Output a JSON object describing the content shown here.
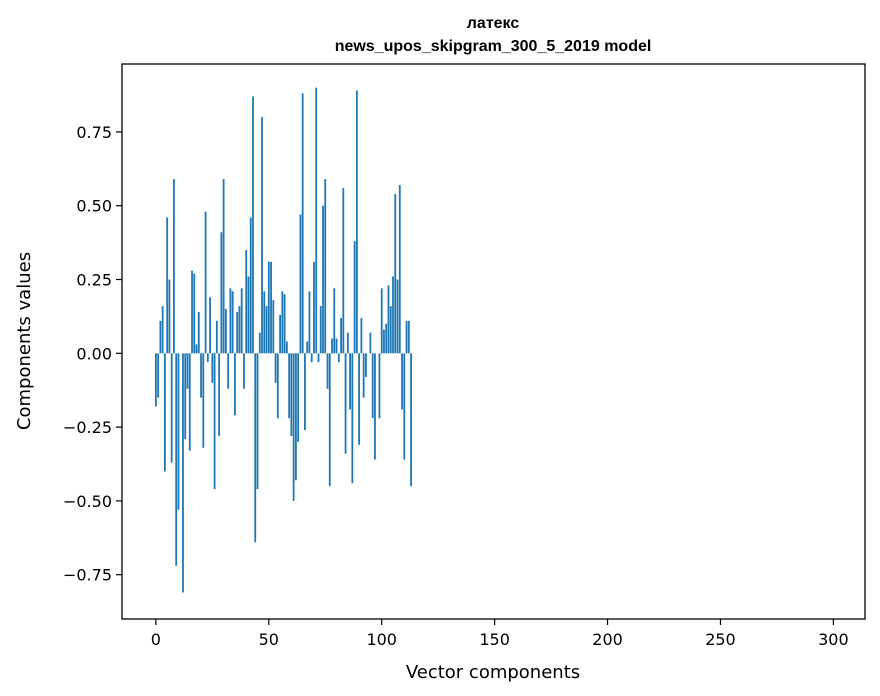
{
  "chart_data": {
    "type": "bar",
    "title": "латекс",
    "subtitle": "news_upos_skipgram_300_5_2019 model",
    "xlabel": "Vector components",
    "ylabel": "Components values",
    "xlim": [
      -15,
      314
    ],
    "ylim": [
      -0.9,
      0.98
    ],
    "xticks": [
      0,
      50,
      100,
      150,
      200,
      250,
      300
    ],
    "xtick_labels": [
      "0",
      "50",
      "100",
      "150",
      "200",
      "250",
      "300"
    ],
    "yticks": [
      -0.75,
      -0.5,
      -0.25,
      0.0,
      0.25,
      0.5,
      0.75
    ],
    "ytick_labels": [
      "−0.75",
      "−0.50",
      "−0.25",
      "0.00",
      "0.25",
      "0.50",
      "0.75"
    ],
    "bar_color": "#1f77b4",
    "grid": false,
    "values": [
      -0.18,
      -0.15,
      0.11,
      0.16,
      -0.4,
      0.46,
      0.25,
      -0.37,
      0.59,
      -0.72,
      -0.53,
      0.0,
      -0.81,
      -0.29,
      -0.12,
      -0.33,
      0.28,
      0.27,
      0.03,
      0.14,
      -0.15,
      -0.32,
      0.48,
      -0.03,
      0.19,
      -0.1,
      -0.46,
      0.11,
      -0.28,
      0.41,
      0.59,
      0.15,
      -0.12,
      0.22,
      0.21,
      -0.21,
      0.14,
      0.16,
      0.22,
      -0.12,
      0.35,
      0.26,
      0.46,
      0.87,
      -0.64,
      -0.46,
      0.07,
      0.8,
      0.21,
      0.16,
      0.31,
      0.31,
      0.18,
      -0.1,
      -0.22,
      0.13,
      0.21,
      0.2,
      0.04,
      -0.22,
      -0.28,
      -0.5,
      -0.43,
      -0.3,
      0.47,
      0.88,
      -0.26,
      0.04,
      0.21,
      -0.03,
      0.31,
      0.9,
      -0.03,
      0.16,
      0.5,
      0.59,
      -0.12,
      -0.45,
      0.05,
      0.22,
      0.05,
      -0.03,
      0.12,
      0.56,
      -0.34,
      0.07,
      -0.19,
      -0.44,
      0.38,
      0.89,
      -0.31,
      0.12,
      -0.15,
      -0.08,
      0.0,
      0.07,
      -0.22,
      -0.36,
      0.0,
      -0.22,
      0.22,
      0.08,
      0.1,
      0.23,
      0.16,
      0.26,
      0.54,
      0.25,
      0.57,
      -0.19,
      -0.36,
      0.11,
      0.11,
      -0.45,
      0.0,
      0.0,
      0.0,
      0.0,
      0.0,
      0.0,
      0.0,
      0.0,
      0.0,
      0.0,
      0.0,
      0.0,
      0.0,
      0.0,
      0.0,
      0.0,
      0.0,
      0.0,
      0.0,
      0.0,
      0.0,
      0.0,
      0.0,
      0.0,
      0.0,
      0.0,
      0.0,
      0.0,
      0.0,
      0.0,
      0.0,
      0.0,
      0.0,
      0.0,
      0.0,
      0.0,
      0.0,
      0.0,
      0.0,
      0.0,
      0.0,
      0.0,
      0.0,
      0.0,
      0.0,
      0.0,
      0.0,
      0.0,
      0.0,
      0.0,
      0.0,
      0.0,
      0.0,
      0.0,
      0.0,
      0.0,
      0.0,
      0.0,
      0.0,
      0.0,
      0.0,
      0.0,
      0.0,
      0.0,
      0.0,
      0.0,
      0.0,
      0.0,
      0.0,
      0.0,
      0.0,
      0.0,
      0.0,
      0.0,
      0.0,
      0.0,
      0.0,
      0.0,
      0.0,
      0.0,
      0.0,
      0.0,
      0.0,
      0.0,
      0.0,
      0.0,
      0.0,
      0.0,
      0.0,
      0.0,
      0.0,
      0.0,
      0.0,
      0.0,
      0.0,
      0.0,
      0.0,
      0.0,
      0.0,
      0.0,
      0.0,
      0.0,
      0.0,
      0.0,
      0.0,
      0.0,
      0.0,
      0.0,
      0.0,
      0.0,
      0.0,
      0.0,
      0.0,
      0.0,
      0.0,
      0.0,
      0.0,
      0.0,
      0.0,
      0.0,
      0.0,
      0.0,
      0.0,
      0.0,
      0.0,
      0.0,
      0.0,
      0.0,
      0.0,
      0.0,
      0.0,
      0.0,
      0.0,
      0.0,
      0.0,
      0.0,
      0.0,
      0.0,
      0.0,
      0.0,
      0.0,
      0.0,
      0.0,
      0.0,
      0.0,
      0.0,
      0.0,
      0.0,
      0.0,
      0.0,
      0.0,
      0.0,
      0.0,
      0.0,
      0.0,
      0.0,
      0.0,
      0.0,
      0.0,
      0.0,
      0.0,
      0.0,
      0.0,
      0.0,
      0.0,
      0.0,
      0.0,
      0.0,
      0.0,
      0.0,
      0.0,
      0.0,
      0.0,
      0.0,
      0.0,
      0.0,
      0.0,
      0.0,
      0.0,
      0.0,
      0.0,
      0.0,
      0.0,
      0.0,
      0.0,
      0.0
    ]
  }
}
